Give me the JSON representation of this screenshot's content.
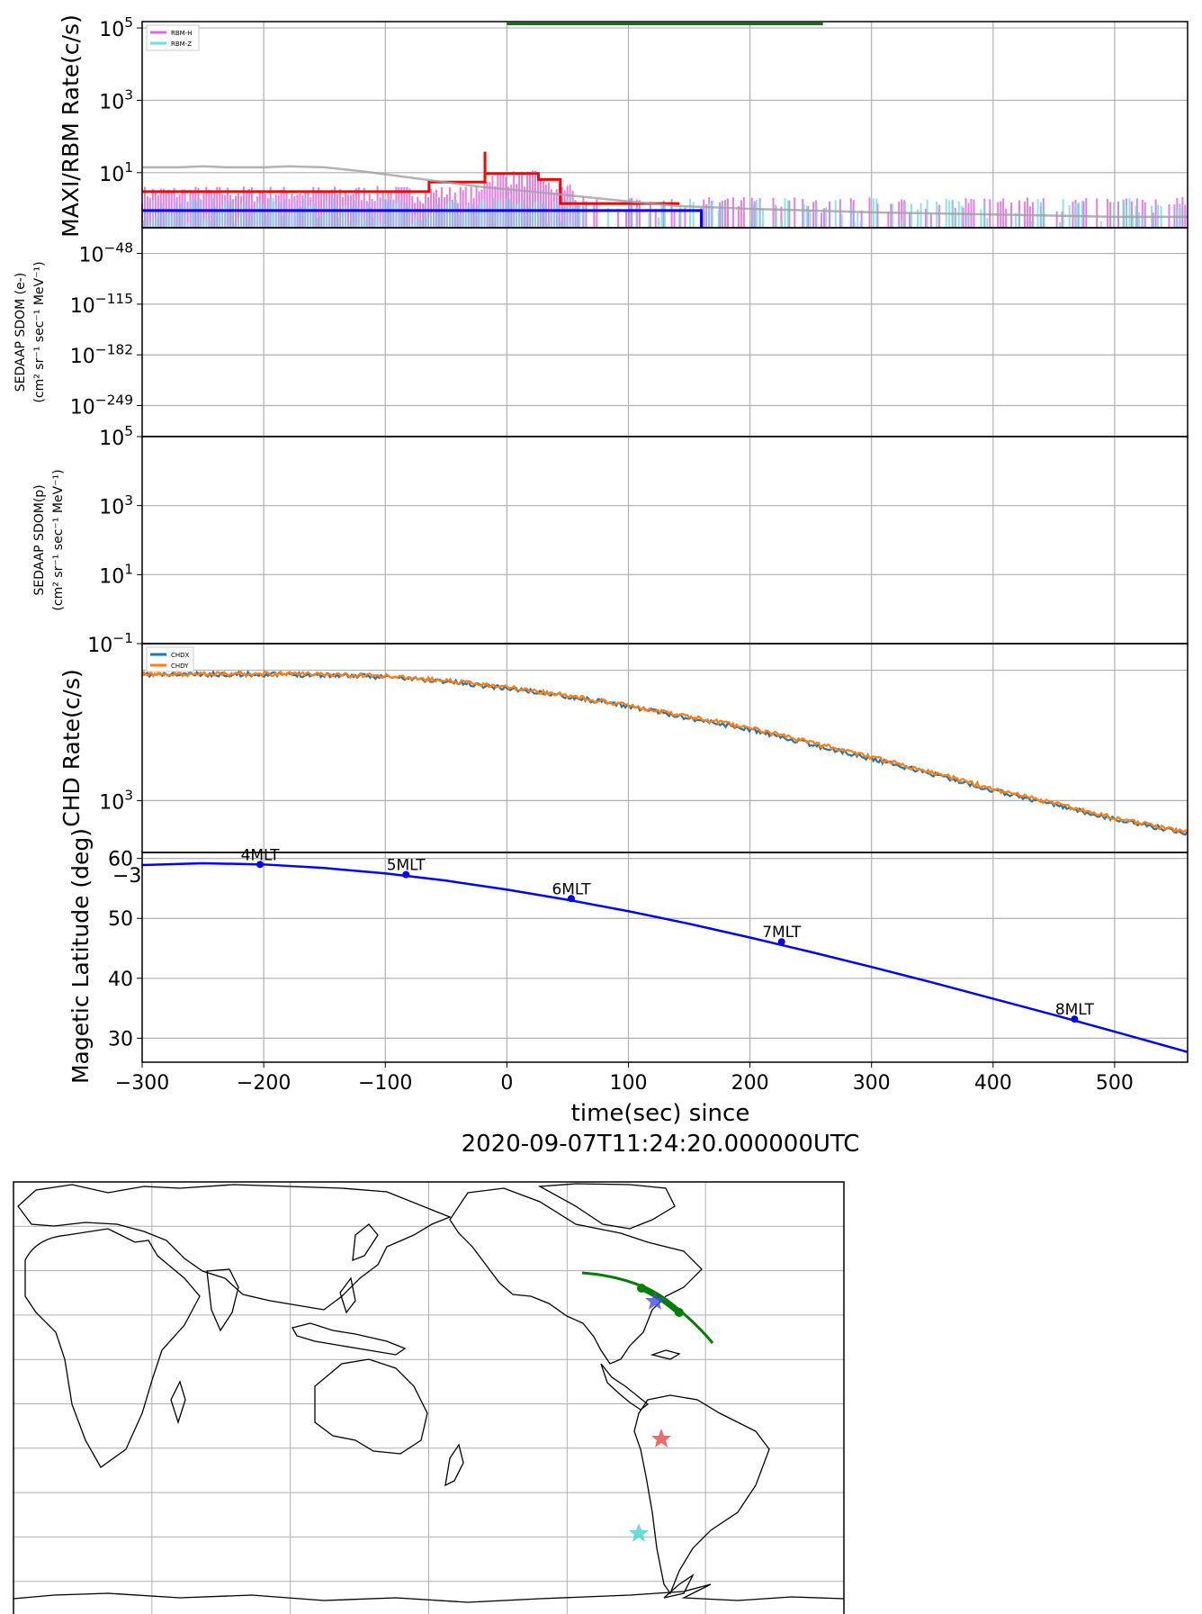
{
  "chart_data": [
    {
      "type": "line",
      "panel": "maxi-rbm",
      "ylabel": "MAXI/RBM Rate(c/s)",
      "yscale": "log",
      "ylim": [
        0.3,
        150000
      ],
      "yticks": [
        {
          "v": 100000,
          "base": "10",
          "exp": "5"
        },
        {
          "v": 1000,
          "base": "10",
          "exp": "3"
        },
        {
          "v": 10,
          "base": "10",
          "exp": "1"
        }
      ],
      "legend": {
        "position": "top-left",
        "entries": [
          "RBM-H",
          "RBM-Z"
        ]
      },
      "colors": {
        "rbm_h": "#e066e0",
        "rbm_z": "#6edede",
        "red": "#ff0000",
        "blue": "#0000ff",
        "gray": "#a0a0a0",
        "green": "#008000"
      },
      "series": [
        {
          "name": "RBM-H",
          "x_range": [
            -300,
            560
          ],
          "level": 2.5
        },
        {
          "name": "RBM-Z",
          "x_range": [
            -300,
            560
          ],
          "level": 0.9
        },
        {
          "name": "",
          "color": "red",
          "x": [
            -300,
            -64,
            -64,
            -18,
            -18,
            26,
            26,
            44,
            44,
            142
          ],
          "y": [
            3,
            3,
            5.5,
            5.5,
            9.5,
            9.5,
            6.5,
            6.5,
            1.4,
            1.4
          ]
        },
        {
          "name": "",
          "color": "blue",
          "x": [
            -300,
            160,
            160
          ],
          "y": [
            0.9,
            0.9,
            0.3
          ]
        },
        {
          "name": "",
          "color": "gray",
          "x": [
            -300,
            -270,
            -250,
            -230,
            -200,
            -180,
            -150,
            -120,
            -100,
            -60,
            -20,
            20,
            60,
            100,
            140,
            200,
            250,
            300,
            400,
            500,
            560
          ],
          "y": [
            14,
            14,
            15,
            14,
            14,
            15,
            14,
            11,
            9,
            6,
            4,
            3,
            2.2,
            1.6,
            1.2,
            1.0,
            0.9,
            0.8,
            0.7,
            0.6,
            0.6
          ]
        },
        {
          "name": "",
          "color": "green",
          "x": [
            0,
            260
          ],
          "y": [
            130000,
            130000
          ]
        }
      ]
    },
    {
      "type": "line",
      "panel": "sedaap-e",
      "ylabel_lines": [
        "SEDAAP SDOM (e-)",
        "(cm² sr⁻¹ sec⁻¹ MeV⁻¹)"
      ],
      "yscale": "log",
      "ylim": [
        1e-290,
        1e-14
      ],
      "yticks": [
        {
          "v": -48,
          "base": "10",
          "exp": "−48"
        },
        {
          "v": -115,
          "base": "10",
          "exp": "−115"
        },
        {
          "v": -182,
          "base": "10",
          "exp": "−182"
        },
        {
          "v": -249,
          "base": "10",
          "exp": "−249"
        }
      ],
      "series": []
    },
    {
      "type": "line",
      "panel": "sedaap-p",
      "ylabel_lines": [
        "SEDAAP SDOM(p)",
        "(cm² sr⁻¹ sec⁻¹ MeV⁻¹)"
      ],
      "yscale": "log",
      "ylim": [
        0.1,
        100000
      ],
      "yticks": [
        {
          "v": 100000,
          "base": "10",
          "exp": "5"
        },
        {
          "v": 1000,
          "base": "10",
          "exp": "3"
        },
        {
          "v": 10,
          "base": "10",
          "exp": "1"
        },
        {
          "v": 0.1,
          "base": "10",
          "exp": "−1"
        }
      ],
      "series": []
    },
    {
      "type": "line",
      "panel": "chd",
      "ylabel": "CHD Rate(c/s)",
      "yscale": "log",
      "ylim": [
        400,
        16000
      ],
      "yticks": [
        {
          "v": 1000,
          "base": "10",
          "exp": "3"
        }
      ],
      "legend": {
        "position": "top-left",
        "entries": [
          "CHDX",
          "CHDY"
        ]
      },
      "colors": {
        "chdx": "#1f77b4",
        "chdy": "#ff7f0e"
      },
      "series": [
        {
          "name": "CHDX",
          "x": [
            -300,
            -250,
            -200,
            -150,
            -100,
            -50,
            0,
            50,
            100,
            150,
            200,
            250,
            300,
            350,
            400,
            450,
            500,
            560
          ],
          "y": [
            9200,
            9300,
            9300,
            9200,
            8900,
            8200,
            7300,
            6300,
            5300,
            4300,
            3500,
            2700,
            2100,
            1600,
            1200,
            930,
            720,
            560
          ]
        },
        {
          "name": "CHDY",
          "x": [
            -300,
            -250,
            -200,
            -150,
            -100,
            -50,
            0,
            50,
            100,
            150,
            200,
            250,
            300,
            350,
            400,
            450,
            500,
            560
          ],
          "y": [
            9300,
            9400,
            9400,
            9300,
            9000,
            8300,
            7400,
            6400,
            5400,
            4400,
            3600,
            2800,
            2150,
            1640,
            1230,
            950,
            740,
            570
          ]
        }
      ]
    },
    {
      "type": "line",
      "panel": "maglat",
      "ylabel": "Magetic Latitude  (deg)",
      "ylim": [
        26,
        61
      ],
      "yticks": [
        60,
        50,
        40,
        30
      ],
      "corner_label": "−3",
      "xlabel": "time(sec) since",
      "xlabel2": "2020-09-07T11:24:20.000000UTC",
      "xlim": [
        -300,
        560
      ],
      "xticks": [
        -300,
        -200,
        -100,
        0,
        100,
        200,
        300,
        400,
        500
      ],
      "xtick_labels": [
        "−300",
        "−200",
        "−100",
        "0",
        "100",
        "200",
        "300",
        "400",
        "500"
      ],
      "color": "#0000ff",
      "series": [
        {
          "name": "",
          "x": [
            -300,
            -250,
            -200,
            -150,
            -100,
            -50,
            0,
            50,
            100,
            150,
            200,
            250,
            300,
            350,
            400,
            450,
            500,
            560
          ],
          "y": [
            58.9,
            59.2,
            59.0,
            58.4,
            57.5,
            56.3,
            54.8,
            53.1,
            51.2,
            49.1,
            46.8,
            44.4,
            41.9,
            39.3,
            36.6,
            33.9,
            31.1,
            27.7
          ]
        }
      ],
      "mlt_markers": [
        {
          "x": -203,
          "y": 59.0,
          "label": "4MLT"
        },
        {
          "x": -83,
          "y": 57.3,
          "label": "5MLT"
        },
        {
          "x": 53,
          "y": 53.3,
          "label": "6MLT"
        },
        {
          "x": 226,
          "y": 46.1,
          "label": "7MLT"
        },
        {
          "x": 467,
          "y": 33.2,
          "label": "8MLT"
        }
      ]
    }
  ],
  "map": {
    "track_color": "#008000",
    "stars": [
      {
        "color": "#4a4ae8"
      },
      {
        "color": "#f05a5a"
      },
      {
        "color": "#5ad8d8"
      }
    ]
  }
}
